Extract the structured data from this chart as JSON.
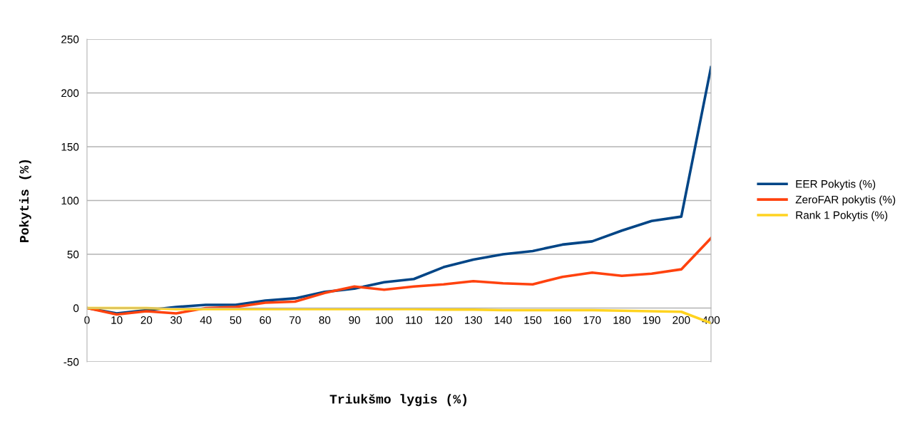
{
  "chart_data": {
    "type": "line",
    "xlabel": "Triukšmo lygis (%)",
    "ylabel": "Pokytis (%)",
    "categories": [
      "0",
      "10",
      "20",
      "30",
      "40",
      "50",
      "60",
      "70",
      "80",
      "90",
      "100",
      "110",
      "120",
      "130",
      "140",
      "150",
      "160",
      "170",
      "180",
      "190",
      "200",
      "400"
    ],
    "series": [
      {
        "name": "EER Pokytis (%)",
        "color": "#004586",
        "values": [
          0,
          -5,
          -2,
          1,
          3,
          3,
          7,
          9,
          15,
          18,
          24,
          27,
          38,
          45,
          50,
          53,
          59,
          62,
          72,
          81,
          85,
          224
        ]
      },
      {
        "name": "ZeroFAR pokytis (%)",
        "color": "#ff420e",
        "values": [
          0,
          -6,
          -3,
          -5,
          0,
          1,
          5,
          6,
          14,
          20,
          17,
          20,
          22,
          25,
          23,
          22,
          29,
          33,
          30,
          32,
          36,
          65
        ]
      },
      {
        "name": "Rank 1 Pokytis (%)",
        "color": "#ffd320",
        "values": [
          0,
          0,
          0,
          -1,
          -1,
          -1,
          -1,
          -1,
          -1,
          -1,
          -1,
          -1,
          -1.5,
          -1.5,
          -2,
          -2,
          -2,
          -2,
          -2.5,
          -3,
          -3.5,
          -14
        ]
      }
    ],
    "ylim": [
      -50,
      250
    ],
    "yticks": [
      -50,
      0,
      50,
      100,
      150,
      200,
      250
    ],
    "grid": "y",
    "legend": "right",
    "marker": "none",
    "line_style": "solid"
  }
}
